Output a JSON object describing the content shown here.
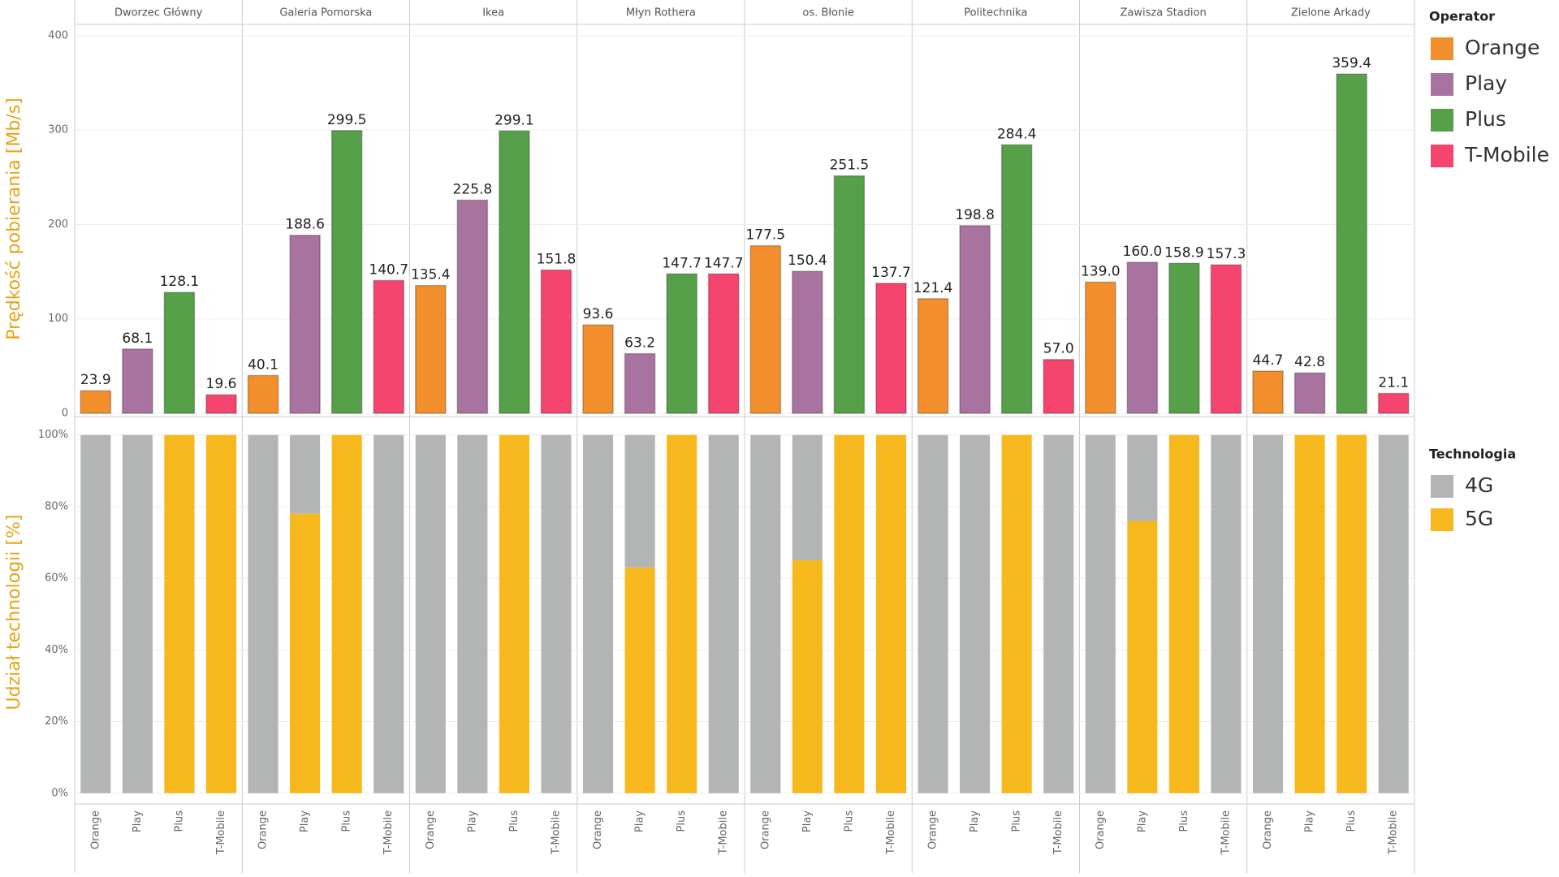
{
  "chart_data": [
    {
      "type": "bar",
      "facets": [
        "Dworzec Główny",
        "Galeria Pomorska",
        "Ikea",
        "Młyn Rothera",
        "os. Błonie",
        "Politechnika",
        "Zawisza Stadion",
        "Zielone Arkady"
      ],
      "ylabel": "Prędkość pobierania [Mb/s]",
      "ylim": [
        0,
        412
      ],
      "yticks": [
        0,
        100,
        200,
        300,
        400
      ],
      "grid": true,
      "legend_title": "Operator",
      "series": [
        {
          "name": "Orange",
          "color": "#f28e2b",
          "values": [
            23.9,
            40.1,
            135.4,
            93.6,
            177.5,
            121.4,
            139.0,
            44.7
          ],
          "value_labels": [
            "23.9",
            "40.1",
            "135.4",
            "93.6",
            "177.5",
            "121.4",
            "139.0",
            "44.7"
          ]
        },
        {
          "name": "Play",
          "color": "#a8739f",
          "values": [
            68.1,
            188.6,
            225.8,
            63.2,
            150.4,
            198.8,
            160.0,
            42.8
          ],
          "value_labels": [
            "68.1",
            "188.6",
            "225.8",
            "63.2",
            "150.4",
            "198.8",
            "160.0",
            "42.8"
          ]
        },
        {
          "name": "Plus",
          "color": "#55a048",
          "values": [
            128.1,
            299.5,
            299.1,
            147.7,
            251.5,
            284.4,
            158.9,
            359.4
          ],
          "value_labels": [
            "128.1",
            "299.5",
            "299.1",
            "147.7",
            "251.5",
            "284.4",
            "158.9",
            "359.4"
          ]
        },
        {
          "name": "T-Mobile",
          "color": "#f5456e",
          "values": [
            19.6,
            140.7,
            151.8,
            147.7,
            137.7,
            57.0,
            157.3,
            21.1
          ],
          "value_labels": [
            "19.6",
            "140.7",
            "151.8",
            "147.7",
            "137.7",
            "57.0",
            "157.3",
            "21.1"
          ]
        }
      ]
    },
    {
      "type": "stacked_bar",
      "categories": [
        "Orange",
        "Play",
        "Plus",
        "T-Mobile"
      ],
      "ylabel": "Udział technologii [%]",
      "ylim": [
        -3,
        104
      ],
      "yticks": [
        {
          "value": 0,
          "label": "0%"
        },
        {
          "value": 20,
          "label": "20%"
        },
        {
          "value": 40,
          "label": "40%"
        },
        {
          "value": 60,
          "label": "60%"
        },
        {
          "value": 80,
          "label": "80%"
        },
        {
          "value": 100,
          "label": "100%"
        }
      ],
      "grid": true,
      "legend_title": "Technologia",
      "series": [
        {
          "name": "5G",
          "color": "#f7b81e",
          "values": [
            [
              0,
              0,
              100,
              100
            ],
            [
              0,
              78,
              100,
              0
            ],
            [
              0,
              0,
              100,
              0
            ],
            [
              0,
              63,
              100,
              0
            ],
            [
              0,
              65,
              100,
              100
            ],
            [
              0,
              0,
              100,
              0
            ],
            [
              0,
              76,
              100,
              0
            ],
            [
              0,
              100,
              100,
              0
            ]
          ]
        },
        {
          "name": "4G",
          "color": "#b3b5b5",
          "values": [
            [
              100,
              100,
              0,
              0
            ],
            [
              100,
              22,
              0,
              100
            ],
            [
              100,
              100,
              0,
              100
            ],
            [
              100,
              37,
              0,
              100
            ],
            [
              100,
              35,
              0,
              0
            ],
            [
              100,
              100,
              0,
              100
            ],
            [
              100,
              24,
              0,
              100
            ],
            [
              100,
              0,
              0,
              100
            ]
          ]
        }
      ]
    }
  ]
}
